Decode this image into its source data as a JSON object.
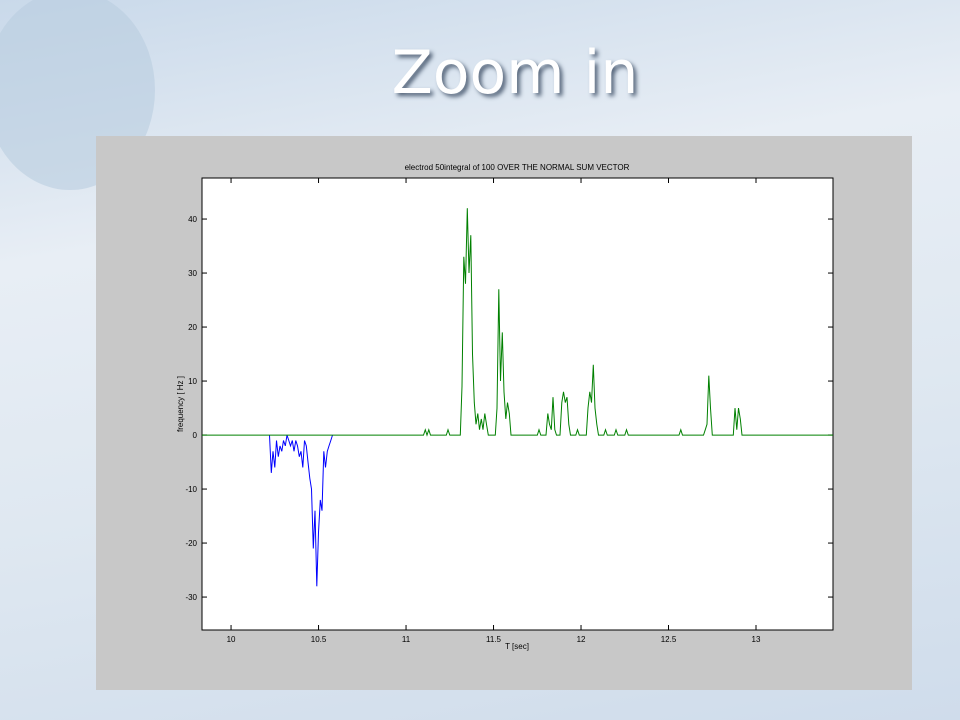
{
  "slide_title": "Zoom in",
  "chart_data": {
    "type": "line",
    "title": "electrod 50integral of 100 OVER THE NORMAL SUM VECTOR",
    "xlabel": "T [sec]",
    "ylabel": "frequency [ Hz ]",
    "xlim": [
      9.834,
      13.44
    ],
    "ylim": [
      -36.1,
      47.6
    ],
    "xticks": [
      10,
      10.5,
      11,
      11.5,
      12,
      12.5,
      13
    ],
    "yticks": [
      -30,
      -20,
      -10,
      0,
      10,
      20,
      30,
      40
    ],
    "series": [
      {
        "color": "#0000ff",
        "x": [
          10.22,
          10.23,
          10.24,
          10.25,
          10.26,
          10.27,
          10.28,
          10.29,
          10.3,
          10.31,
          10.32,
          10.33,
          10.34,
          10.35,
          10.36,
          10.37,
          10.38,
          10.39,
          10.4,
          10.41,
          10.42,
          10.43,
          10.44,
          10.45,
          10.46,
          10.47,
          10.48,
          10.49,
          10.5,
          10.51,
          10.52,
          10.53,
          10.54,
          10.55,
          10.56,
          10.57,
          10.58
        ],
        "values": [
          0,
          -7,
          -3,
          -6,
          -1,
          -4,
          -2,
          -3,
          -1,
          -2,
          0,
          -1,
          -2,
          -1,
          -3,
          -1,
          -2,
          -4,
          -3,
          -6,
          -1,
          -2,
          -5,
          -8,
          -10,
          -21,
          -14,
          -28,
          -18,
          -12,
          -14,
          -3,
          -6,
          -3,
          -2,
          -1,
          0
        ]
      },
      {
        "color": "#008000",
        "x": [
          9.834,
          11.1,
          11.11,
          11.12,
          11.13,
          11.14,
          11.23,
          11.24,
          11.25,
          11.31,
          11.32,
          11.33,
          11.34,
          11.35,
          11.36,
          11.37,
          11.38,
          11.39,
          11.4,
          11.41,
          11.42,
          11.43,
          11.44,
          11.45,
          11.46,
          11.47,
          11.51,
          11.52,
          11.53,
          11.54,
          11.55,
          11.56,
          11.57,
          11.58,
          11.59,
          11.6,
          11.75,
          11.76,
          11.77,
          11.8,
          11.81,
          11.82,
          11.83,
          11.84,
          11.85,
          11.86,
          11.88,
          11.89,
          11.9,
          11.91,
          11.92,
          11.93,
          11.94,
          11.97,
          11.98,
          11.99,
          12.03,
          12.04,
          12.05,
          12.06,
          12.07,
          12.08,
          12.09,
          12.1,
          12.13,
          12.14,
          12.15,
          12.19,
          12.2,
          12.21,
          12.25,
          12.26,
          12.27,
          12.56,
          12.57,
          12.58,
          12.7,
          12.71,
          12.72,
          12.73,
          12.74,
          12.75,
          12.87,
          12.88,
          12.89,
          12.9,
          12.91,
          12.92,
          13.44
        ],
        "values": [
          0,
          0,
          1,
          0,
          1,
          0,
          0,
          1,
          0,
          0,
          9,
          33,
          28,
          42,
          30,
          37,
          15,
          6,
          2,
          4,
          1,
          3,
          1,
          4,
          2,
          0,
          0,
          5,
          27,
          10,
          19,
          8,
          3,
          6,
          4,
          0,
          0,
          1,
          0,
          0,
          4,
          2,
          1,
          7,
          1,
          0,
          0,
          6,
          8,
          6,
          7,
          2,
          0,
          0,
          1,
          0,
          0,
          5,
          8,
          6,
          13,
          5,
          2,
          0,
          0,
          1,
          0,
          0,
          1,
          0,
          0,
          1,
          0,
          0,
          1,
          0,
          0,
          1,
          2,
          11,
          5,
          0,
          0,
          5,
          1,
          5,
          3,
          0,
          0
        ]
      }
    ]
  }
}
